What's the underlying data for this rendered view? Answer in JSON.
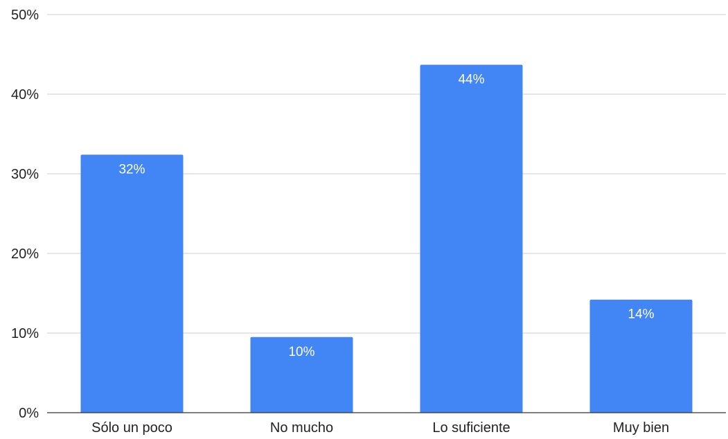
{
  "chart_data": {
    "type": "bar",
    "title": "",
    "xlabel": "",
    "ylabel": "",
    "categories": [
      "Sólo un poco",
      "No mucho",
      "Lo suficiente",
      "Muy bien"
    ],
    "values": [
      32.4,
      9.5,
      43.7,
      14.2
    ],
    "data_labels": [
      "32%",
      "10%",
      "44%",
      "14%"
    ],
    "ylim": [
      0,
      50
    ],
    "yticks": [
      0,
      10,
      20,
      30,
      40,
      50
    ],
    "ytick_labels": [
      "0%",
      "10%",
      "20%",
      "30%",
      "40%",
      "50%"
    ],
    "grid": true,
    "legend": "none",
    "bar_color": "#4285f4"
  }
}
